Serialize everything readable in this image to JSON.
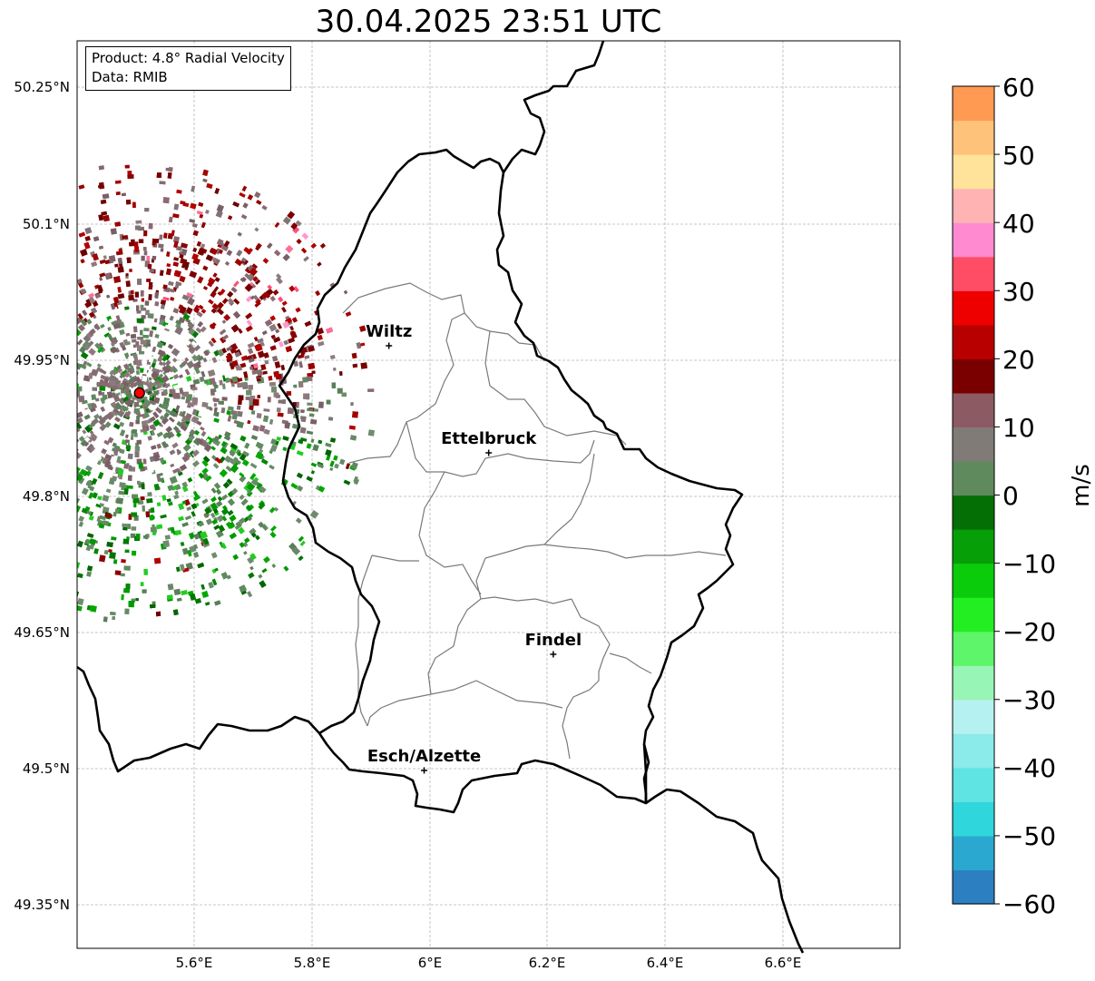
{
  "title": "30.04.2025 23:51 UTC",
  "info": {
    "product": "Product: 4.8° Radial Velocity",
    "data": "Data: RMIB"
  },
  "axes": {
    "lat_ticks": [
      "50.25°N",
      "50.1°N",
      "49.95°N",
      "49.8°N",
      "49.65°N",
      "49.5°N",
      "49.35°N"
    ],
    "lon_ticks": [
      "5.6°E",
      "5.8°E",
      "6°E",
      "6.2°E",
      "6.4°E",
      "6.6°E"
    ]
  },
  "cities": [
    {
      "name": "Wiltz",
      "lon": 5.93,
      "lat": 49.966
    },
    {
      "name": "Ettelbruck",
      "lon": 6.1,
      "lat": 49.848
    },
    {
      "name": "Findel",
      "lon": 6.21,
      "lat": 49.626
    },
    {
      "name": "Esch/Alzette",
      "lon": 5.99,
      "lat": 49.498
    }
  ],
  "radar_site": {
    "lon": 5.505,
    "lat": 49.914
  },
  "colorbar": {
    "label": "m/s",
    "ticks": [
      "60",
      "50",
      "40",
      "30",
      "20",
      "10",
      "0",
      "−10",
      "−20",
      "−30",
      "−40",
      "−50",
      "−60"
    ],
    "min": -60,
    "max": 60,
    "colors": [
      "#2c7fc0",
      "#2aa8cf",
      "#2fd6dc",
      "#5fe3e3",
      "#8beaea",
      "#b6f1f1",
      "#97f5b5",
      "#5ef56a",
      "#22ee22",
      "#0bcc0b",
      "#079f07",
      "#046f04",
      "#5e8a5e",
      "#817b78",
      "#8c5a62",
      "#7a0000",
      "#b80000",
      "#ee0000",
      "#ff4d66",
      "#ff8ad0",
      "#ffb3b3",
      "#ffe39a",
      "#ffc27a",
      "#ff9a52"
    ]
  }
}
